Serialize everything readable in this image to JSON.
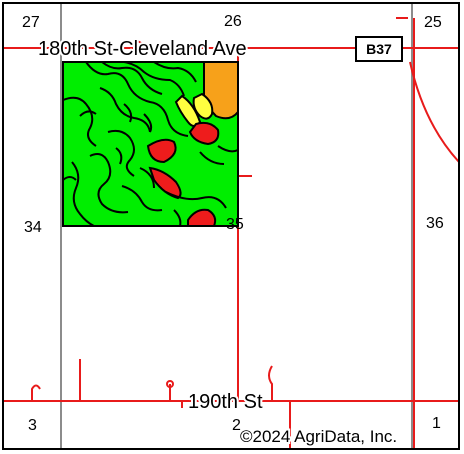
{
  "map": {
    "section_numbers": {
      "s27": "27",
      "s26": "26",
      "s25": "25",
      "s34": "34",
      "s35": "35",
      "s36": "36",
      "s3": "3",
      "s2": "2",
      "s1": "1"
    },
    "roads": {
      "north": "180th St-Cleveland Ave",
      "south": "190th St"
    },
    "route_shield": "B37",
    "copyright": "©2024 AgriData, Inc."
  },
  "colors": {
    "field_green": "#00ee00",
    "soil_red": "#ee1c1c",
    "soil_yellow": "#ffff40",
    "soil_orange": "#f7a11a",
    "road_red": "#e81b1b",
    "grid_gray": "#8c8c8c",
    "outline": "#000000"
  }
}
